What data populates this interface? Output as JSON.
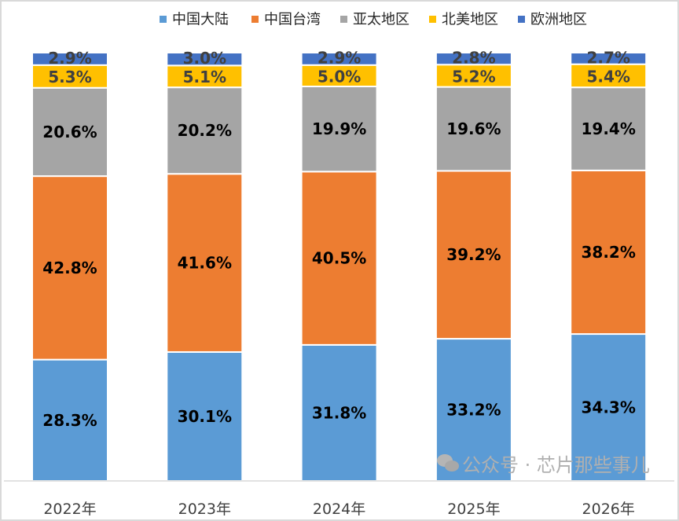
{
  "chart_data": {
    "type": "bar",
    "stacked": "percent",
    "categories": [
      "2022年",
      "2023年",
      "2024年",
      "2025年",
      "2026年"
    ],
    "series": [
      {
        "name": "中国大陆",
        "color": "#5b9bd5",
        "values": [
          28.3,
          30.1,
          31.8,
          33.2,
          34.3
        ]
      },
      {
        "name": "中国台湾",
        "color": "#ed7d31",
        "values": [
          42.8,
          41.6,
          40.5,
          39.2,
          38.2
        ]
      },
      {
        "name": "亚太地区",
        "color": "#a5a5a5",
        "values": [
          20.6,
          20.2,
          19.9,
          19.6,
          19.4
        ]
      },
      {
        "name": "北美地区",
        "color": "#ffc000",
        "values": [
          5.3,
          5.1,
          5.0,
          5.2,
          5.4
        ]
      },
      {
        "name": "欧洲地区",
        "color": "#4472c4",
        "values": [
          2.9,
          3.0,
          2.9,
          2.8,
          2.7
        ]
      }
    ],
    "value_format": "%",
    "ylim": [
      0,
      100
    ],
    "grid": false,
    "legend": "top"
  },
  "watermark": "公众号 · 芯片那些事儿"
}
